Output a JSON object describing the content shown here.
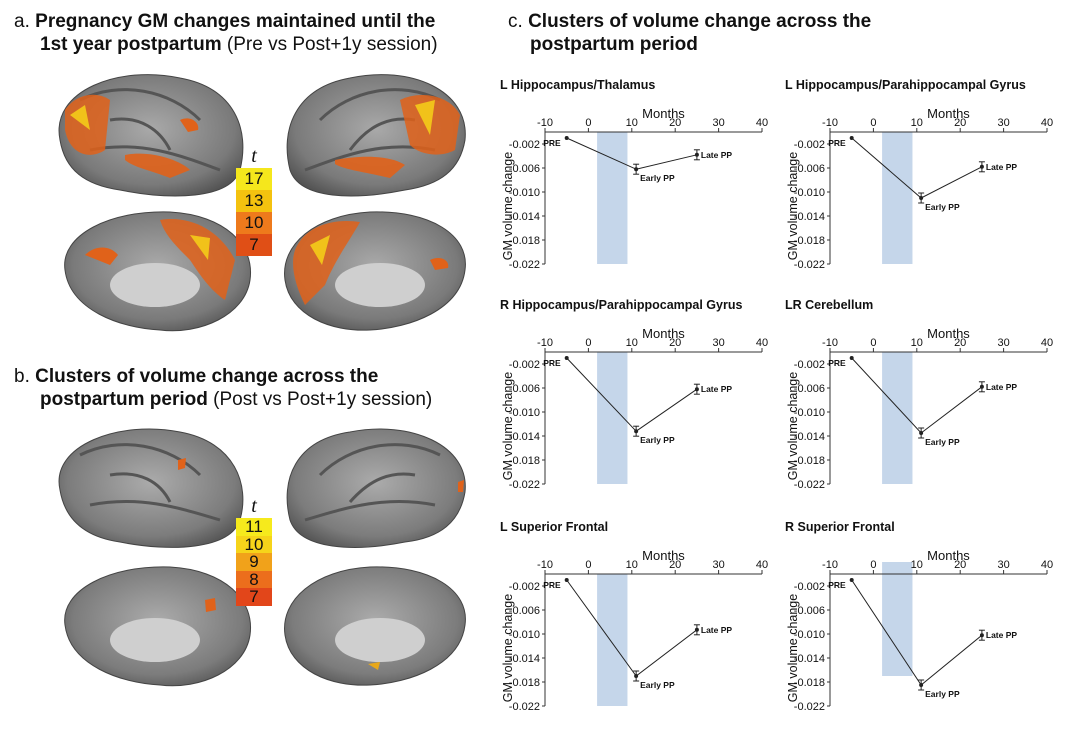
{
  "panel_a": {
    "letter": "a.",
    "title_bold": "Pregnancy GM changes maintained until the",
    "title_bold2": "1st year postpartum",
    "title_rest": " (Pre vs Post+1y session)",
    "scale_label": "t",
    "scale_values": [
      "17",
      "13",
      "10",
      "7"
    ],
    "scale_colors": [
      "#f5e71c",
      "#f4c20f",
      "#ee7a1c",
      "#e04f16"
    ]
  },
  "panel_b": {
    "letter": "b.",
    "title_bold": "Clusters of volume change across the",
    "title_bold2": "postpartum period",
    "title_rest": " (Post vs Post+1y session)",
    "scale_label": "t",
    "scale_values": [
      "11",
      "10",
      "9",
      "8",
      "7"
    ],
    "scale_colors": [
      "#f6ea1c",
      "#f6d41a",
      "#f1a21a",
      "#ec6e1c",
      "#e2461a"
    ]
  },
  "panel_c": {
    "letter": "c.",
    "title_bold": "Clusters of volume change across the",
    "title_bold2": "postpartum period"
  },
  "chart_data": [
    {
      "type": "line",
      "title": "L Hippocampus/Thalamus",
      "xlabel": "Months",
      "ylabel": "GM volume change",
      "xlim": [
        -10,
        40
      ],
      "xticks": [
        -10,
        0,
        10,
        20,
        30,
        40
      ],
      "ylim": [
        -0.022,
        0
      ],
      "yticks": [
        "-0.002",
        "-0.006",
        "-0.010",
        "-0.014",
        "-0.018",
        "-0.022"
      ],
      "x": [
        -5,
        11,
        25
      ],
      "y": [
        -0.001,
        -0.0062,
        -0.0038
      ],
      "point_labels": [
        "PRE",
        "Early PP",
        "Late PP"
      ],
      "shaded_x": [
        2,
        9
      ],
      "shade_ylim": [
        -0.022,
        0
      ]
    },
    {
      "type": "line",
      "title": "L Hippocampus/Parahippocampal Gyrus",
      "xlabel": "Months",
      "ylabel": "GM volume change",
      "xlim": [
        -10,
        40
      ],
      "xticks": [
        -10,
        0,
        10,
        20,
        30,
        40
      ],
      "ylim": [
        -0.022,
        0
      ],
      "yticks": [
        "-0.002",
        "-0.006",
        "-0.010",
        "-0.014",
        "-0.018",
        "-0.022"
      ],
      "x": [
        -5,
        11,
        25
      ],
      "y": [
        -0.001,
        -0.011,
        -0.0058
      ],
      "point_labels": [
        "PRE",
        "Early PP",
        "Late PP"
      ],
      "shaded_x": [
        2,
        9
      ],
      "shade_ylim": [
        -0.022,
        0
      ]
    },
    {
      "type": "line",
      "title": "R Hippocampus/Parahippocampal Gyrus",
      "xlabel": "Months",
      "ylabel": "GM volume change",
      "xlim": [
        -10,
        40
      ],
      "xticks": [
        -10,
        0,
        10,
        20,
        30,
        40
      ],
      "ylim": [
        -0.022,
        0
      ],
      "yticks": [
        "-0.002",
        "-0.006",
        "-0.010",
        "-0.014",
        "-0.018",
        "-0.022"
      ],
      "x": [
        -5,
        11,
        25
      ],
      "y": [
        -0.001,
        -0.0132,
        -0.0062
      ],
      "point_labels": [
        "PRE",
        "Early PP",
        "Late PP"
      ],
      "shaded_x": [
        2,
        9
      ],
      "shade_ylim": [
        -0.022,
        0
      ]
    },
    {
      "type": "line",
      "title": "LR Cerebellum",
      "xlabel": "Months",
      "ylabel": "GM volume change",
      "xlim": [
        -10,
        40
      ],
      "xticks": [
        -10,
        0,
        10,
        20,
        30,
        40
      ],
      "ylim": [
        -0.022,
        0
      ],
      "yticks": [
        "-0.002",
        "-0.006",
        "-0.010",
        "-0.014",
        "-0.018",
        "-0.022"
      ],
      "x": [
        -5,
        11,
        25
      ],
      "y": [
        -0.001,
        -0.0135,
        -0.0058
      ],
      "point_labels": [
        "PRE",
        "Early PP",
        "Late PP"
      ],
      "shaded_x": [
        2,
        9
      ],
      "shade_ylim": [
        -0.022,
        0
      ]
    },
    {
      "type": "line",
      "title": "L Superior Frontal",
      "xlabel": "Months",
      "ylabel": "GM volume change",
      "xlim": [
        -10,
        40
      ],
      "xticks": [
        -10,
        0,
        10,
        20,
        30,
        40
      ],
      "ylim": [
        -0.022,
        0
      ],
      "yticks": [
        "-0.002",
        "-0.006",
        "-0.010",
        "-0.014",
        "-0.018",
        "-0.022"
      ],
      "x": [
        -5,
        11,
        25
      ],
      "y": [
        -0.001,
        -0.017,
        -0.0093
      ],
      "point_labels": [
        "PRE",
        "Early PP",
        "Late PP"
      ],
      "shaded_x": [
        2,
        9
      ],
      "shade_ylim": [
        -0.022,
        0
      ]
    },
    {
      "type": "line",
      "title": "R Superior Frontal",
      "xlabel": "Months",
      "ylabel": "GM volume change",
      "xlim": [
        -10,
        40
      ],
      "xticks": [
        -10,
        0,
        10,
        20,
        30,
        40
      ],
      "ylim": [
        -0.022,
        0
      ],
      "yticks": [
        "-0.002",
        "-0.006",
        "-0.010",
        "-0.014",
        "-0.018",
        "-0.022"
      ],
      "x": [
        -5,
        11,
        25
      ],
      "y": [
        -0.001,
        -0.0185,
        -0.0102
      ],
      "point_labels": [
        "PRE",
        "Early PP",
        "Late PP"
      ],
      "shaded_x": [
        2,
        9
      ],
      "shade_ylim": [
        -0.017,
        0.002
      ]
    }
  ],
  "colors": {
    "shade": "#c5d6ea",
    "axis": "#333333",
    "line": "#222222"
  }
}
